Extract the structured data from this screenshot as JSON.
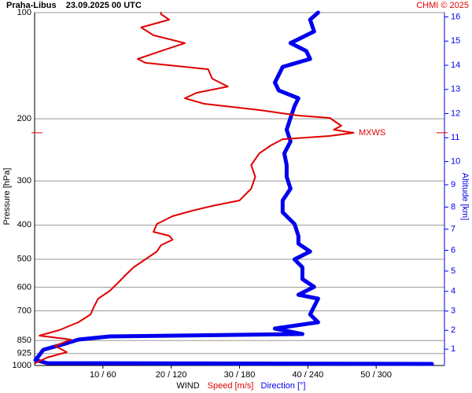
{
  "chart_data": {
    "type": "line",
    "title": "Praha-Libus    23.09.2025 00 UTC",
    "credit": "CHMI © 2025",
    "ylabel": "Pressure [hPa]",
    "y2label": "Altitude [km]",
    "xlabel": "WIND",
    "ylim": [
      100,
      1000
    ],
    "ylog": true,
    "yticks": [
      100,
      200,
      300,
      400,
      500,
      600,
      700,
      850,
      925,
      1000
    ],
    "y2ticks": [
      1,
      2,
      3,
      4,
      5,
      6,
      7,
      8,
      9,
      10,
      11,
      12,
      13,
      14,
      15,
      16
    ],
    "xlim": [
      0,
      60
    ],
    "xticks": [
      {
        "value": 10,
        "label": "10 / 60"
      },
      {
        "value": 20,
        "label": "20 / 120"
      },
      {
        "value": 30,
        "label": "30 / 180"
      },
      {
        "value": 40,
        "label": "40 / 240"
      },
      {
        "value": 50,
        "label": "50 / 300"
      }
    ],
    "grid": true,
    "annotation": {
      "label": "MXWS",
      "pressure": 219
    },
    "series": [
      {
        "name": "Speed [m/s]",
        "color": "#e00000",
        "xlim": [
          0,
          60
        ],
        "pressure": [
          100,
          101,
          104.7,
          110.2,
          116,
          122,
          128.5,
          135.3,
          138.8,
          144.7,
          153.9,
          162,
          168.8,
          174.9,
          181.3,
          188.9,
          195.8,
          198.8,
          209.3,
          214.7,
          219.2,
          223.7,
          228.4,
          237.9,
          250.5,
          270.5,
          292.1,
          315.4,
          340.7,
          353.1,
          364.1,
          377.4,
          397.3,
          418.2,
          429,
          440.3,
          456.3,
          475.5,
          500.5,
          526.8,
          554.6,
          583.7,
          614.4,
          646.7,
          680.8,
          716.6,
          754.3,
          794,
          823,
          844.3,
          880,
          916.5,
          950,
          984.7
        ],
        "values": [
          18.5,
          18.5,
          19.7,
          15.6,
          17.4,
          22.0,
          18.5,
          15.1,
          16.2,
          25.4,
          26.0,
          28.3,
          23.7,
          22.0,
          24.8,
          32.9,
          38.6,
          43.2,
          44.9,
          43.8,
          46.7,
          43.2,
          36.3,
          34.6,
          32.9,
          31.7,
          32.3,
          31.7,
          30.0,
          26.0,
          23.1,
          20.2,
          17.9,
          17.4,
          19.7,
          20.2,
          18.5,
          17.9,
          16.2,
          14.5,
          13.3,
          12.2,
          11.0,
          9.3,
          8.7,
          8.2,
          6.4,
          3.6,
          0.7,
          5.3,
          3.0,
          4.7,
          1.8,
          0.1
        ]
      },
      {
        "name": "Direction [°]",
        "color": "#0000ee",
        "xlim": [
          0,
          360
        ],
        "pressure": [
          100,
          104.7,
          113.1,
          122,
          128.5,
          135.3,
          142.5,
          150,
          157.8,
          166.2,
          174.9,
          184.1,
          198.8,
          214.7,
          231.9,
          250.5,
          270.5,
          292.1,
          315.4,
          340.7,
          367.9,
          397.3,
          429,
          451.7,
          475.5,
          500.5,
          526.8,
          569,
          598.9,
          630.4,
          646.7,
          680.8,
          716.6,
          754.3,
          785.8,
          814.5,
          827.3,
          844.3,
          871,
          902.5,
          935.4,
          964.7,
          984.7,
          990
        ],
        "values": [
          249,
          242,
          245.5,
          224.8,
          238.6,
          242,
          217.9,
          214.5,
          211,
          214.5,
          231.7,
          228.3,
          224.8,
          221.4,
          224.8,
          219.3,
          221.4,
          221.4,
          224.8,
          217.9,
          217.9,
          228.3,
          231.7,
          231.7,
          242,
          228.3,
          235.2,
          235.2,
          245.5,
          231.7,
          249,
          245.5,
          242,
          249,
          211,
          235.2,
          66.2,
          38.6,
          24.8,
          7.6,
          4.1,
          0.7,
          11,
          349
        ]
      }
    ]
  }
}
